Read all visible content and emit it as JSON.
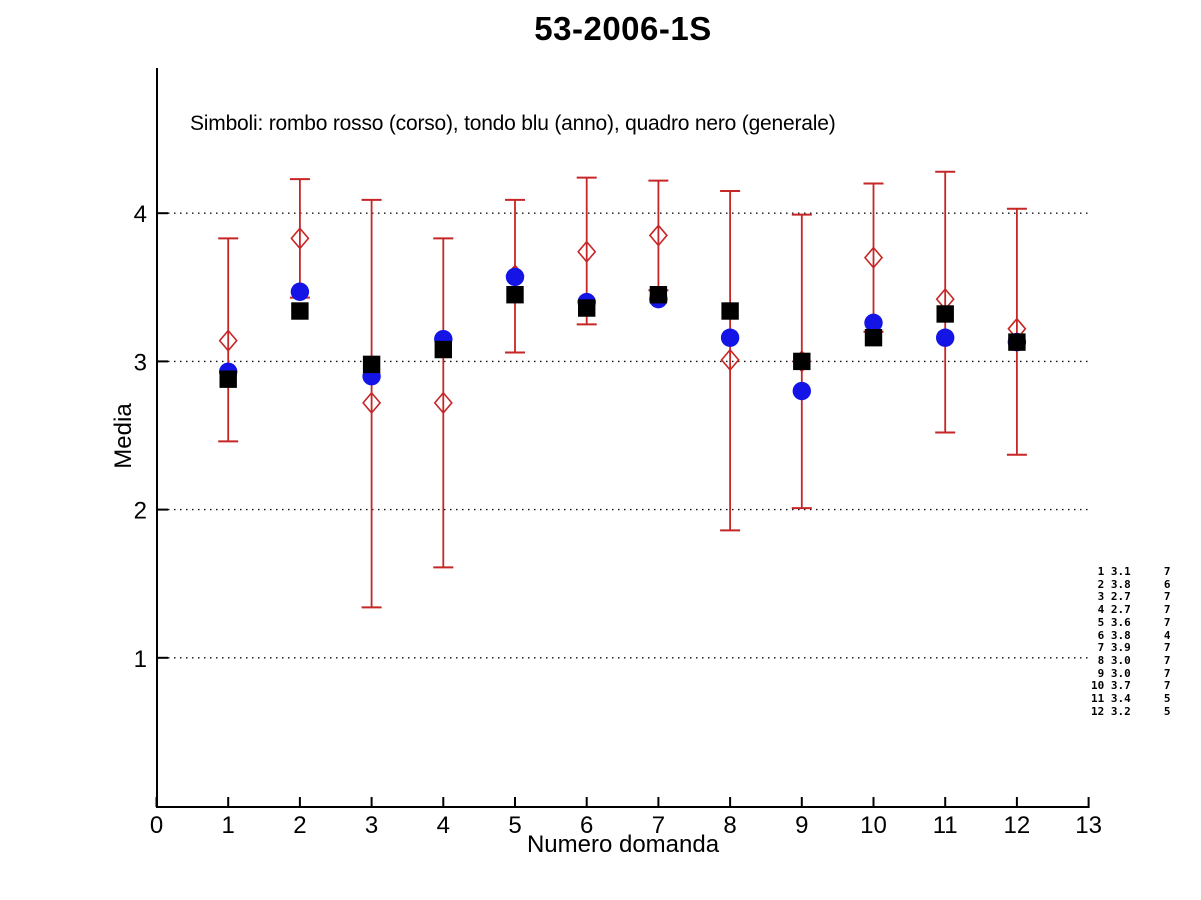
{
  "title": "53-2006-1S",
  "annotation": "Simboli: rombo rosso (corso), tondo blu (anno), quadro nero (generale)",
  "colors": {
    "corso_red": "#C62626",
    "anno_blue": "#1414E6",
    "generale_black": "#000000",
    "axis": "#000000"
  },
  "chart_data": {
    "type": "scatter",
    "title": "53-2006-1S",
    "xlabel": "Numero domanda",
    "ylabel": "Media",
    "xlim": [
      0,
      13
    ],
    "ylim": [
      0,
      5
    ],
    "xticks": [
      0,
      1,
      2,
      3,
      4,
      5,
      6,
      7,
      8,
      9,
      10,
      11,
      12,
      13
    ],
    "yticks": [
      1,
      2,
      3,
      4
    ],
    "grid": "horizontal dotted lines at each y tick",
    "legend_note": "Simboli: rombo rosso (corso), tondo blu (anno), quadro nero (generale)",
    "x": [
      1,
      2,
      3,
      4,
      5,
      6,
      7,
      8,
      9,
      10,
      11,
      12
    ],
    "series": [
      {
        "name": "corso",
        "marker": "open-diamond",
        "color": "#C62626",
        "values": [
          3.14,
          3.83,
          2.72,
          2.72,
          3.58,
          3.74,
          3.85,
          3.01,
          3.0,
          3.7,
          3.42,
          3.22
        ],
        "err_top": [
          3.83,
          4.23,
          4.09,
          3.83,
          4.09,
          4.24,
          4.22,
          4.15,
          3.99,
          4.2,
          4.28,
          4.03
        ],
        "err_bot": [
          2.46,
          3.43,
          1.34,
          1.61,
          3.06,
          3.25,
          3.48,
          1.86,
          2.01,
          3.2,
          2.52,
          2.37
        ]
      },
      {
        "name": "anno",
        "marker": "filled-circle",
        "color": "#1414E6",
        "values": [
          2.93,
          3.47,
          2.9,
          3.15,
          3.57,
          3.4,
          3.42,
          3.16,
          2.8,
          3.26,
          3.16,
          3.13
        ]
      },
      {
        "name": "generale",
        "marker": "filled-square",
        "color": "#000000",
        "values": [
          2.88,
          3.34,
          2.98,
          3.08,
          3.45,
          3.36,
          3.45,
          3.34,
          3.0,
          3.16,
          3.32,
          3.13
        ]
      }
    ],
    "side_table": {
      "rows": [
        [
          1,
          "3.1",
          7
        ],
        [
          2,
          "3.8",
          6
        ],
        [
          3,
          "2.7",
          7
        ],
        [
          4,
          "2.7",
          7
        ],
        [
          5,
          "3.6",
          7
        ],
        [
          6,
          "3.8",
          4
        ],
        [
          7,
          "3.9",
          7
        ],
        [
          8,
          "3.0",
          7
        ],
        [
          9,
          "3.0",
          7
        ],
        [
          10,
          "3.7",
          7
        ],
        [
          11,
          "3.4",
          5
        ],
        [
          12,
          "3.2",
          5
        ]
      ]
    }
  }
}
